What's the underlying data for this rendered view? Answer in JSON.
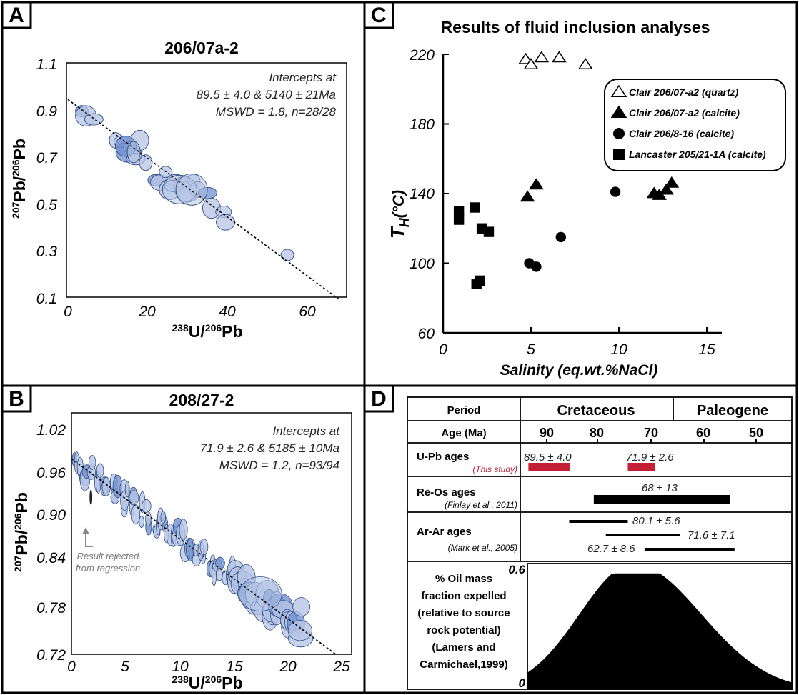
{
  "panels": {
    "A": {
      "letter": "A",
      "title": "206/07a-2",
      "annotation": [
        "Intercepts at",
        "89.5 ± 4.0 & 5140 ± 21Ma",
        "MSWD = 1.8, n=28/28"
      ],
      "xlabel": {
        "base": "U/",
        "sup1": "238",
        "sup2": "206",
        "end": "Pb"
      },
      "ylabel": {
        "sup1": "207",
        "mid": "Pb/",
        "sup2": "206",
        "end": "Pb"
      },
      "xticks": [
        "0",
        "20",
        "40",
        "60"
      ],
      "yticks": [
        "0.1",
        "0.3",
        "0.5",
        "0.7",
        "0.9",
        "1.1"
      ]
    },
    "B": {
      "letter": "B",
      "title": "208/27-2",
      "annotation": [
        "Intercepts at",
        "71.9 ± 2.6 & 5185 ± 10Ma",
        "MSWD = 1.2, n=93/94"
      ],
      "rejected_note": [
        "Result rejected",
        "from regression"
      ],
      "xlabel": {
        "base": "U/",
        "sup1": "238",
        "sup2": "206",
        "end": "Pb"
      },
      "ylabel": {
        "sup1": "207",
        "mid": "Pb/",
        "sup2": "206",
        "end": "Pb"
      },
      "xticks": [
        "0",
        "5",
        "10",
        "15",
        "20",
        "25"
      ],
      "yticks": [
        "0.72",
        "0.78",
        "0.84",
        "0.90",
        "0.96",
        "1.02"
      ]
    },
    "C": {
      "letter": "C",
      "title": "Results of fluid inclusion analyses",
      "xlabel": "Salinity (eq.wt.%NaCl)",
      "ylabel_main": "T",
      "ylabel_sub": "H",
      "ylabel_unit": "(°C)",
      "xticks": [
        "0",
        "5",
        "10",
        "15"
      ],
      "yticks": [
        "60",
        "100",
        "140",
        "180",
        "220"
      ]
    },
    "D": {
      "letter": "D",
      "header_period": "Period",
      "header_cretaceous": "Cretaceous",
      "header_paleogene": "Paleogene",
      "age_label": "Age (Ma)",
      "age_ticks": [
        "90",
        "80",
        "70",
        "60",
        "50"
      ],
      "upb_label": "U-Pb ages",
      "upb_source": "(This study)",
      "upb_values": [
        "89.5 ± 4.0",
        "71.9 ± 2.6"
      ],
      "reos_label": "Re-Os ages",
      "reos_source": "(Finlay et al., 2011)",
      "reos_value": "68 ± 13",
      "arar_label": "Ar-Ar ages",
      "arar_source": "(Mark et al., 2005)",
      "arar_values": [
        "80.1 ± 5.6",
        "71.6 ± 7.1",
        "62.7 ± 8.6"
      ],
      "oil_label": [
        "% Oil mass",
        "fraction expelled",
        "(relative to source",
        "rock potential)",
        "(Lamers and",
        "Carmichael,1999)"
      ],
      "oil_y_top": "0.6",
      "oil_y_bottom": "0"
    }
  },
  "colors": {
    "ellipse_fill": "#b7c6e6",
    "ellipse_dark": "#6f90cf",
    "ellipse_stroke": "#2e4d84",
    "upb_bar": "#c32036"
  },
  "chart_data": [
    {
      "type": "scatter",
      "panel": "A",
      "title": "206/07a-2",
      "xlim": [
        0,
        70
      ],
      "ylim": [
        0.1,
        1.1
      ],
      "regression": {
        "from": [
          0,
          0.945
        ],
        "to": [
          68,
          0.09
        ]
      },
      "points": [
        {
          "x": 3.5,
          "y": 0.895
        },
        {
          "x": 4.5,
          "y": 0.875
        },
        {
          "x": 6.5,
          "y": 0.86
        },
        {
          "x": 12,
          "y": 0.77
        },
        {
          "x": 13.5,
          "y": 0.765
        },
        {
          "x": 15,
          "y": 0.72
        },
        {
          "x": 15.5,
          "y": 0.74
        },
        {
          "x": 16.5,
          "y": 0.71
        },
        {
          "x": 17,
          "y": 0.69
        },
        {
          "x": 18,
          "y": 0.77
        },
        {
          "x": 22,
          "y": 0.6
        },
        {
          "x": 23,
          "y": 0.59
        },
        {
          "x": 24.5,
          "y": 0.635
        },
        {
          "x": 25.5,
          "y": 0.56
        },
        {
          "x": 27,
          "y": 0.6
        },
        {
          "x": 28,
          "y": 0.57
        },
        {
          "x": 29,
          "y": 0.59
        },
        {
          "x": 30,
          "y": 0.55
        },
        {
          "x": 31.5,
          "y": 0.6
        },
        {
          "x": 32.5,
          "y": 0.56
        },
        {
          "x": 35,
          "y": 0.545
        },
        {
          "x": 36,
          "y": 0.48
        },
        {
          "x": 39,
          "y": 0.465
        },
        {
          "x": 39.5,
          "y": 0.42
        },
        {
          "x": 55,
          "y": 0.28
        },
        {
          "x": 14.5,
          "y": 0.745
        },
        {
          "x": 26.5,
          "y": 0.575
        },
        {
          "x": 19.5,
          "y": 0.675
        }
      ]
    },
    {
      "type": "scatter",
      "panel": "B",
      "title": "208/27-2",
      "xlim": [
        0,
        25
      ],
      "ylim": [
        0.72,
        1.02
      ],
      "regression": {
        "from": [
          0,
          0.963
        ],
        "to": [
          24.5,
          0.72
        ]
      },
      "rejected_point": {
        "x": 1.8,
        "y": 0.915
      }
    },
    {
      "type": "scatter",
      "panel": "C",
      "title": "Results of fluid inclusion analyses",
      "xlabel": "Salinity (eq.wt.%NaCl)",
      "ylabel": "TH(°C)",
      "xlim": [
        0,
        16
      ],
      "ylim": [
        60,
        220
      ],
      "legend_position": "top-right",
      "series": [
        {
          "name": "Clair 206/07-a2 (quartz)",
          "marker": "open-triangle",
          "points": [
            [
              4.7,
              217
            ],
            [
              5.0,
              214
            ],
            [
              5.6,
              218
            ],
            [
              6.6,
              218
            ],
            [
              8.1,
              214
            ]
          ]
        },
        {
          "name": "Clair 206/07-a2 (calcite)",
          "marker": "filled-triangle",
          "points": [
            [
              4.8,
              138
            ],
            [
              5.3,
              145
            ],
            [
              12.0,
              140
            ],
            [
              12.3,
              139
            ],
            [
              12.7,
              142
            ],
            [
              13.0,
              146
            ]
          ]
        },
        {
          "name": "Clair 206/8-16 (calcite)",
          "marker": "circle",
          "points": [
            [
              4.9,
              100
            ],
            [
              5.3,
              98
            ],
            [
              6.7,
              115
            ],
            [
              9.8,
              141
            ]
          ]
        },
        {
          "name": "Lancaster 205/21-1A (calcite)",
          "marker": "square",
          "points": [
            [
              0.9,
              130
            ],
            [
              0.9,
              125
            ],
            [
              1.8,
              132
            ],
            [
              2.2,
              120
            ],
            [
              2.6,
              118
            ],
            [
              1.9,
              88
            ],
            [
              2.1,
              90
            ]
          ]
        }
      ]
    },
    {
      "type": "table",
      "panel": "D",
      "age_axis_ma": [
        95,
        45
      ],
      "period_boundary_ma": 66,
      "u_pb": [
        {
          "age": 89.5,
          "err": 4.0
        },
        {
          "age": 71.9,
          "err": 2.6
        }
      ],
      "re_os": [
        {
          "age": 68,
          "err": 13
        }
      ],
      "ar_ar": [
        {
          "age": 80.1,
          "err": 5.6
        },
        {
          "age": 71.6,
          "err": 7.1
        },
        {
          "age": 62.7,
          "err": 8.6
        }
      ],
      "oil_expulsion": {
        "ylim": [
          0,
          0.6
        ],
        "peak_age_ma": 68,
        "peak_value": 0.56
      }
    }
  ]
}
